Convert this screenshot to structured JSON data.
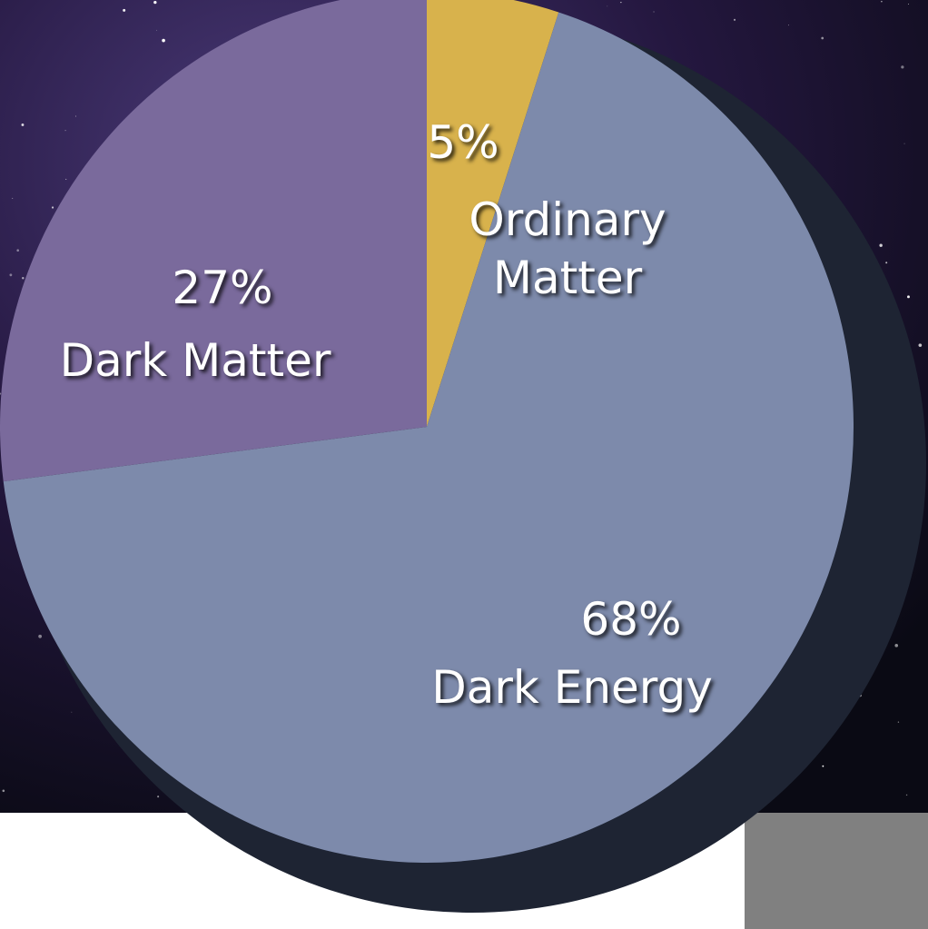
{
  "chart_data": {
    "type": "pie",
    "categories": [
      "Ordinary Matter",
      "Dark Energy",
      "Dark Matter"
    ],
    "values": [
      5,
      68,
      27
    ],
    "value_labels": [
      "5%",
      "68%",
      "27%"
    ],
    "colors": [
      "#d8b24c",
      "#7d8aab",
      "#7a6a9c"
    ]
  }
}
